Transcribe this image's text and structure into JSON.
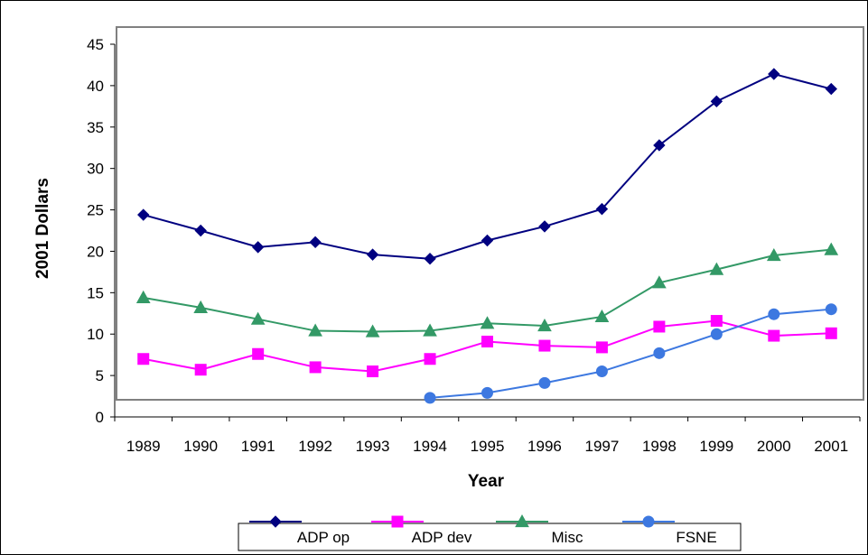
{
  "chart_data": {
    "type": "line",
    "title": "",
    "xlabel": "Year",
    "ylabel": "2001 Dollars",
    "categories": [
      "1989",
      "1990",
      "1991",
      "1992",
      "1993",
      "1994",
      "1995",
      "1996",
      "1997",
      "1998",
      "1999",
      "2000",
      "2001"
    ],
    "ylim": [
      0,
      45
    ],
    "yticks": [
      "0",
      "5",
      "10",
      "15",
      "20",
      "25",
      "30",
      "35",
      "40",
      "45"
    ],
    "grid": false,
    "legend_position": "bottom",
    "series": [
      {
        "name": "ADP op",
        "color": "#000080",
        "marker": "diamond",
        "values": [
          24.4,
          22.5,
          20.5,
          21.1,
          19.6,
          19.1,
          21.3,
          23.0,
          25.1,
          32.8,
          38.1,
          41.4,
          39.6
        ]
      },
      {
        "name": "ADP dev",
        "color": "#FF00FF",
        "marker": "square",
        "values": [
          7.0,
          5.7,
          7.6,
          6.0,
          5.5,
          7.0,
          9.1,
          8.6,
          8.4,
          10.9,
          11.6,
          9.8,
          10.1
        ]
      },
      {
        "name": "Misc",
        "color": "#339966",
        "marker": "triangle",
        "values": [
          14.4,
          13.2,
          11.8,
          10.4,
          10.3,
          10.4,
          11.3,
          11.0,
          12.1,
          16.2,
          17.8,
          19.5,
          20.2
        ]
      },
      {
        "name": "FSNE",
        "color": "#3D78E0",
        "marker": "circle",
        "values": [
          null,
          null,
          null,
          null,
          null,
          2.3,
          2.9,
          4.1,
          5.5,
          7.7,
          10.0,
          12.4,
          13.0
        ]
      }
    ]
  }
}
